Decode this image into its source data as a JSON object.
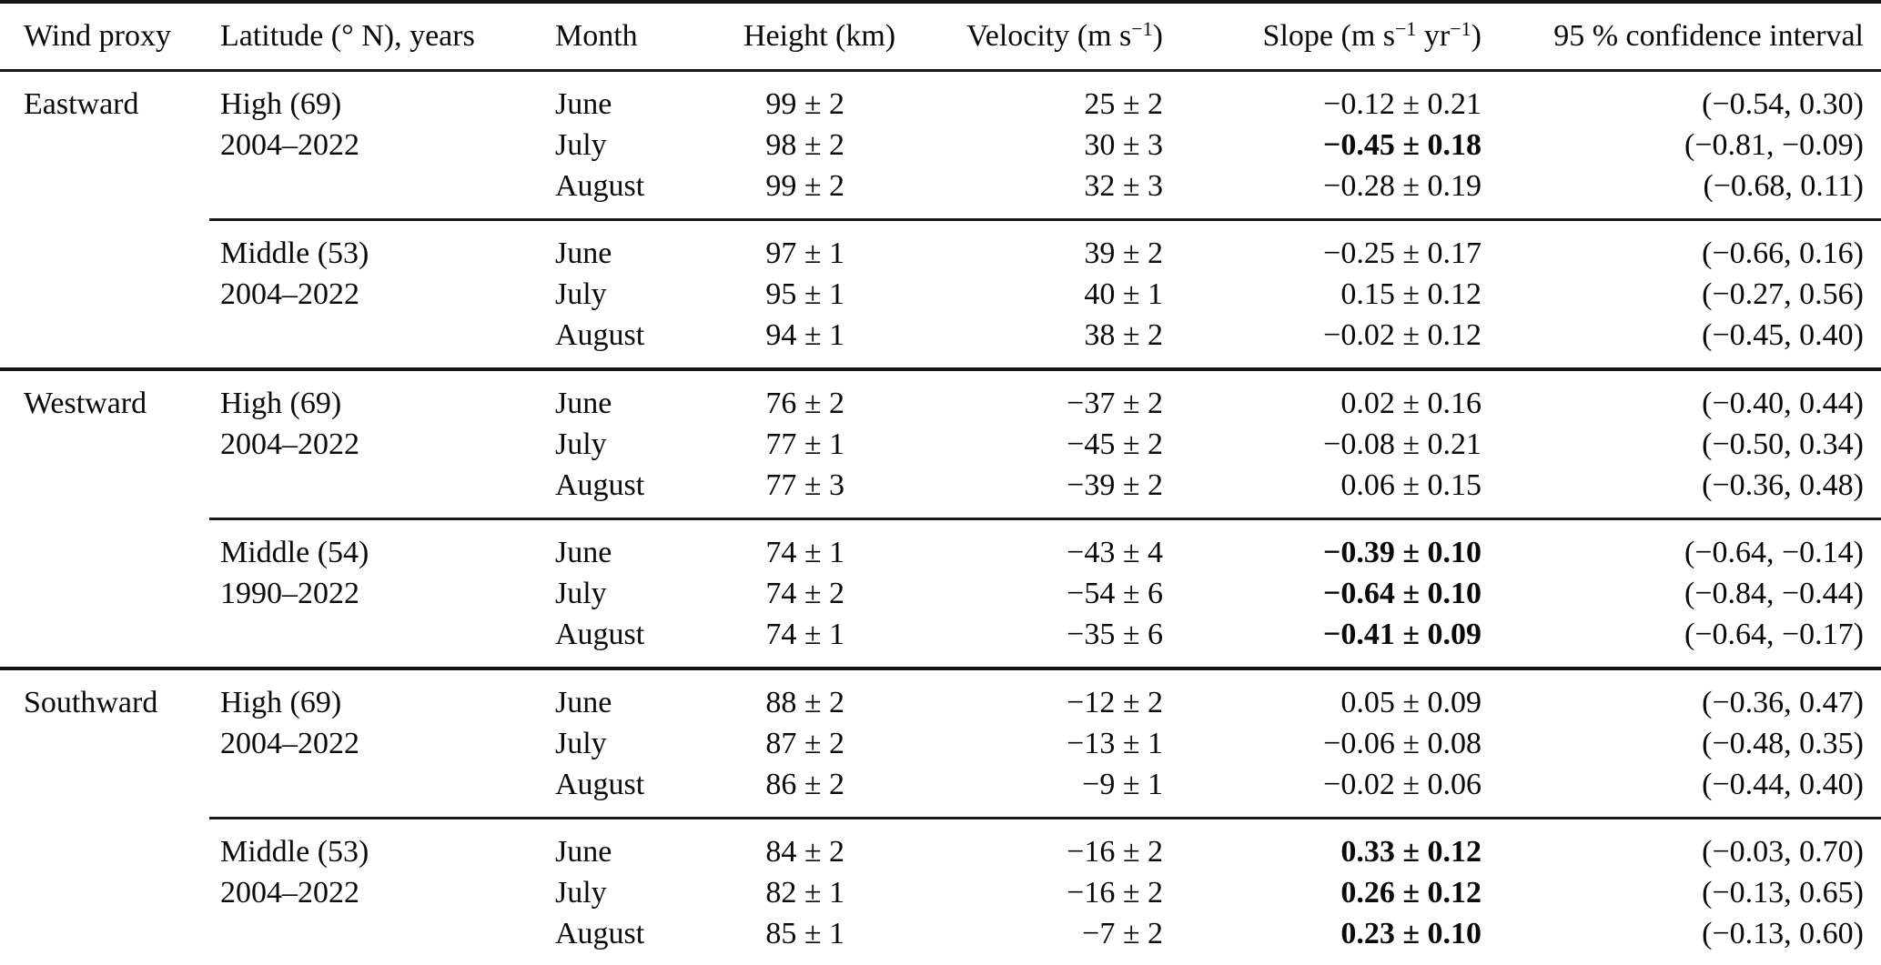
{
  "table": {
    "columns": [
      {
        "name": "wind-proxy",
        "text": "Wind proxy"
      },
      {
        "name": "latitude-years",
        "text": "Latitude (° N), years"
      },
      {
        "name": "month",
        "text": "Month"
      },
      {
        "name": "height",
        "text": "Height (km)"
      },
      {
        "name": "velocity",
        "segments": [
          [
            "t",
            "Velocity (m s"
          ],
          [
            "s",
            "−1"
          ],
          [
            "t",
            ")"
          ]
        ]
      },
      {
        "name": "slope",
        "segments": [
          [
            "t",
            "Slope (m s"
          ],
          [
            "s",
            "−1"
          ],
          [
            "t",
            " yr"
          ],
          [
            "s",
            "−1"
          ],
          [
            "t",
            ")"
          ]
        ]
      },
      {
        "name": "confidence-interval",
        "text": "95 % confidence interval"
      }
    ],
    "groups": [
      {
        "wind_proxy": "Eastward",
        "section_start": true,
        "latitude": "High (69)",
        "years": "2004–2022",
        "rows": [
          {
            "month": "June",
            "height": "99 ± 2",
            "velocity": "25 ± 2",
            "slope": "−0.12 ± 0.21",
            "slope_bold": false,
            "ci": "(−0.54, 0.30)"
          },
          {
            "month": "July",
            "height": "98 ± 2",
            "velocity": "30 ± 3",
            "slope": "−0.45 ± 0.18",
            "slope_bold": true,
            "ci": "(−0.81, −0.09)"
          },
          {
            "month": "August",
            "height": "99 ± 2",
            "velocity": "32 ± 3",
            "slope": "−0.28 ± 0.19",
            "slope_bold": false,
            "ci": "(−0.68, 0.11)"
          }
        ]
      },
      {
        "wind_proxy": "",
        "section_start": false,
        "latitude": "Middle (53)",
        "years": "2004–2022",
        "rows": [
          {
            "month": "June",
            "height": "97 ± 1",
            "velocity": "39 ± 2",
            "slope": "−0.25 ± 0.17",
            "slope_bold": false,
            "ci": "(−0.66, 0.16)"
          },
          {
            "month": "July",
            "height": "95 ± 1",
            "velocity": "40 ± 1",
            "slope": "0.15 ± 0.12",
            "slope_bold": false,
            "ci": "(−0.27, 0.56)"
          },
          {
            "month": "August",
            "height": "94 ± 1",
            "velocity": "38 ± 2",
            "slope": "−0.02 ± 0.12",
            "slope_bold": false,
            "ci": "(−0.45, 0.40)"
          }
        ]
      },
      {
        "wind_proxy": "Westward",
        "section_start": true,
        "latitude": "High (69)",
        "years": "2004–2022",
        "rows": [
          {
            "month": "June",
            "height": "76 ± 2",
            "velocity": "−37 ± 2",
            "slope": "0.02 ± 0.16",
            "slope_bold": false,
            "ci": "(−0.40, 0.44)"
          },
          {
            "month": "July",
            "height": "77 ± 1",
            "velocity": "−45 ± 2",
            "slope": "−0.08 ± 0.21",
            "slope_bold": false,
            "ci": "(−0.50, 0.34)"
          },
          {
            "month": "August",
            "height": "77 ± 3",
            "velocity": "−39 ± 2",
            "slope": "0.06 ± 0.15",
            "slope_bold": false,
            "ci": "(−0.36, 0.48)"
          }
        ]
      },
      {
        "wind_proxy": "",
        "section_start": false,
        "latitude": "Middle (54)",
        "years": "1990–2022",
        "rows": [
          {
            "month": "June",
            "height": "74 ± 1",
            "velocity": "−43 ± 4",
            "slope": "−0.39 ± 0.10",
            "slope_bold": true,
            "ci": "(−0.64, −0.14)"
          },
          {
            "month": "July",
            "height": "74 ± 2",
            "velocity": "−54 ± 6",
            "slope": "−0.64 ± 0.10",
            "slope_bold": true,
            "ci": "(−0.84, −0.44)"
          },
          {
            "month": "August",
            "height": "74 ± 1",
            "velocity": "−35 ± 6",
            "slope": "−0.41 ± 0.09",
            "slope_bold": true,
            "ci": "(−0.64, −0.17)"
          }
        ]
      },
      {
        "wind_proxy": "Southward",
        "section_start": true,
        "latitude": "High (69)",
        "years": "2004–2022",
        "rows": [
          {
            "month": "June",
            "height": "88 ± 2",
            "velocity": "−12 ± 2",
            "slope": "0.05 ± 0.09",
            "slope_bold": false,
            "ci": "(−0.36, 0.47)"
          },
          {
            "month": "July",
            "height": "87 ± 2",
            "velocity": "−13 ± 1",
            "slope": "−0.06 ± 0.08",
            "slope_bold": false,
            "ci": "(−0.48, 0.35)"
          },
          {
            "month": "August",
            "height": "86 ± 2",
            "velocity": "−9 ± 1",
            "slope": "−0.02 ± 0.06",
            "slope_bold": false,
            "ci": "(−0.44, 0.40)"
          }
        ]
      },
      {
        "wind_proxy": "",
        "section_start": false,
        "latitude": "Middle (53)",
        "years": "2004–2022",
        "rows": [
          {
            "month": "June",
            "height": "84 ± 2",
            "velocity": "−16 ± 2",
            "slope": "0.33 ± 0.12",
            "slope_bold": true,
            "ci": "(−0.03, 0.70)"
          },
          {
            "month": "July",
            "height": "82 ± 1",
            "velocity": "−16 ± 2",
            "slope": "0.26 ± 0.12",
            "slope_bold": true,
            "ci": "(−0.13, 0.65)"
          },
          {
            "month": "August",
            "height": "85 ± 1",
            "velocity": "−7 ± 2",
            "slope": "0.23 ± 0.10",
            "slope_bold": true,
            "ci": "(−0.13, 0.60)"
          }
        ]
      }
    ]
  }
}
